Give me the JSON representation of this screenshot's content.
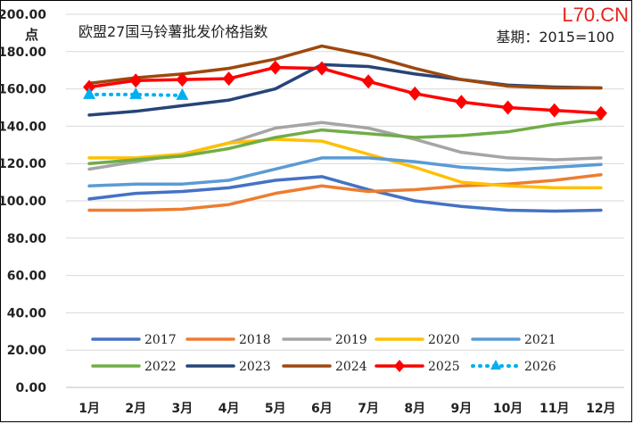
{
  "chart_data": {
    "type": "line",
    "title": "欧盟27国马铃薯批发价格指数",
    "subtitle": "基期：2015=100",
    "watermark": "L70.CN",
    "ylabel": "点",
    "ylim": [
      0,
      200
    ],
    "ytick_step": 20,
    "ytick_labels": [
      "0.00",
      "20.00",
      "40.00",
      "60.00",
      "80.00",
      "100.00",
      "120.00",
      "140.00",
      "160.00",
      "180.00",
      "200.00"
    ],
    "categories": [
      "1月",
      "2月",
      "3月",
      "4月",
      "5月",
      "6月",
      "7月",
      "8月",
      "9月",
      "10月",
      "11月",
      "12月"
    ],
    "grid": true,
    "legend_position": "bottom",
    "series": [
      {
        "name": "2017",
        "color": "#4472c4",
        "values": [
          101,
          104,
          105,
          107,
          111,
          113,
          106,
          100,
          97,
          95,
          94.5,
          95
        ]
      },
      {
        "name": "2018",
        "color": "#ed7d31",
        "values": [
          95,
          95,
          95.5,
          98,
          104,
          108,
          105,
          106,
          108,
          109,
          111,
          114
        ]
      },
      {
        "name": "2019",
        "color": "#a5a5a5",
        "values": [
          117,
          121,
          125,
          131,
          139,
          142,
          139,
          133,
          126,
          123,
          122,
          123
        ]
      },
      {
        "name": "2020",
        "color": "#ffc000",
        "values": [
          123,
          123,
          125,
          131,
          133,
          132,
          125,
          118,
          110,
          108,
          107,
          107
        ]
      },
      {
        "name": "2021",
        "color": "#5b9bd5",
        "values": [
          108,
          109,
          109,
          111,
          117,
          123,
          123,
          121,
          118,
          116.5,
          118,
          119.5
        ]
      },
      {
        "name": "2022",
        "color": "#70ad47",
        "values": [
          120,
          122,
          124,
          128,
          134,
          138,
          136,
          134,
          135,
          137,
          141,
          144
        ]
      },
      {
        "name": "2023",
        "color": "#264478",
        "values": [
          146,
          148,
          151,
          154,
          160,
          173,
          172,
          168,
          165,
          162,
          161,
          160.5
        ]
      },
      {
        "name": "2024",
        "color": "#9e480e",
        "values": [
          163,
          166,
          168,
          171,
          176,
          183,
          178,
          171,
          165,
          161.5,
          160.5,
          160.5
        ]
      },
      {
        "name": "2025",
        "color": "#ff0000",
        "marker": "diamond",
        "values": [
          161,
          164.5,
          165,
          165.5,
          171.5,
          171,
          164,
          157.5,
          153,
          150,
          148.5,
          147
        ]
      },
      {
        "name": "2026",
        "color": "#00b0f0",
        "marker": "triangle",
        "dashed": true,
        "values": [
          157,
          157,
          156.5,
          null,
          null,
          null,
          null,
          null,
          null,
          null,
          null,
          null
        ]
      }
    ]
  }
}
